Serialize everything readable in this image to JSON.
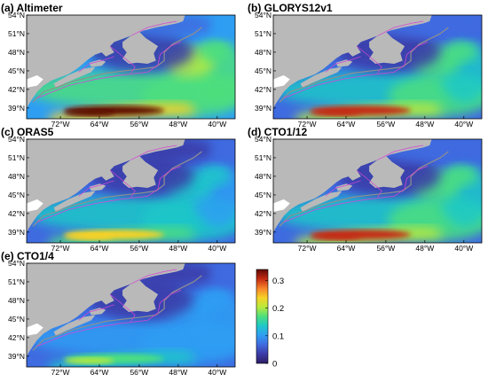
{
  "figure": {
    "colors": {
      "land": "#b9b9b9",
      "boundary": "#d447d4",
      "isobath": "#8f8f8f"
    },
    "colormap_stops": [
      "#2d1e63",
      "#3b3ba6",
      "#3f6be0",
      "#2e9ef3",
      "#1fc8c8",
      "#4ddf7e",
      "#b8ea3c",
      "#f7d126",
      "#f5822a",
      "#c42a12",
      "#5e0a05"
    ],
    "panels": [
      {
        "label": "(a) Altimeter",
        "intensity": 1.0
      },
      {
        "label": "(b) GLORYS12v1",
        "intensity": 0.92
      },
      {
        "label": "(c) ORAS5",
        "intensity": 0.72
      },
      {
        "label": "(d) CTO1/12",
        "intensity": 0.9
      },
      {
        "label": "(e) CTO1/4",
        "intensity": 0.55
      }
    ],
    "axes": {
      "x_ticks": [
        "72°W",
        "64°W",
        "56°W",
        "48°W",
        "40°W"
      ],
      "y_ticks": [
        "54°N",
        "51°N",
        "48°N",
        "45°N",
        "42°N",
        "39°N"
      ],
      "lon_range": [
        -78,
        -36
      ],
      "lat_range": [
        37,
        54
      ]
    },
    "colorbar": {
      "ticks": [
        "0.3",
        "0.2",
        "0.1",
        "0"
      ],
      "range": [
        0,
        0.34
      ]
    }
  }
}
